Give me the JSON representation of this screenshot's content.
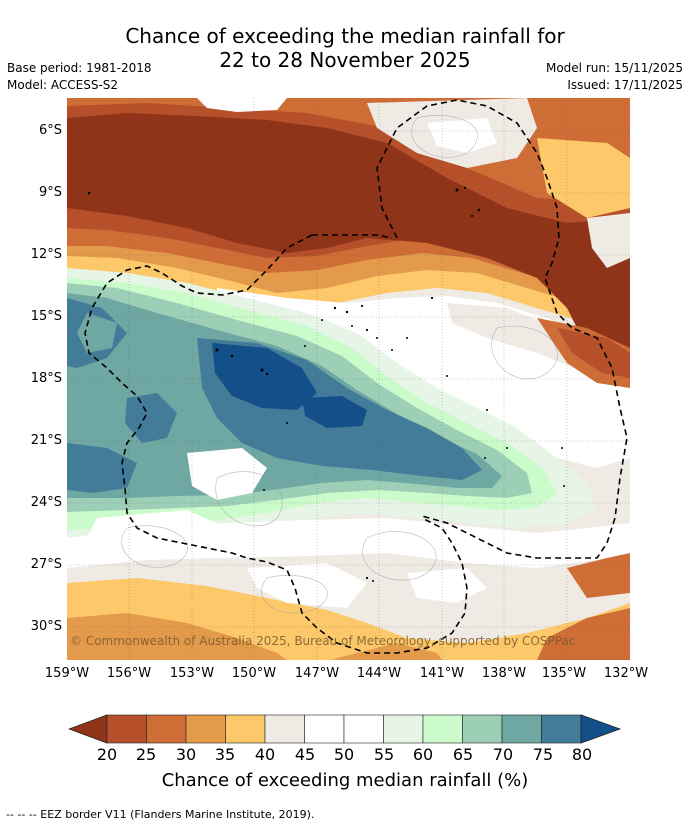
{
  "title_line1": "Chance of exceeding the median rainfall for",
  "title_line2": "22 to 28 November 2025",
  "base_period": "Base period: 1981-2018",
  "model": "Model: ACCESS-S2",
  "model_run": "Model run: 15/11/2025",
  "issued": "Issued: 17/11/2025",
  "copyright": "© Commonwealth of Australia 2025, Bureau of Meteorology, supported by COSPPac",
  "lat_labels": [
    "6°S",
    "9°S",
    "12°S",
    "15°S",
    "18°S",
    "21°S",
    "24°S",
    "27°S",
    "30°S"
  ],
  "lon_labels": [
    "159°W",
    "156°W",
    "153°W",
    "150°W",
    "147°W",
    "144°W",
    "141°W",
    "138°W",
    "135°W",
    "132°W"
  ],
  "colorbar": {
    "ticks": [
      "20",
      "25",
      "30",
      "35",
      "40",
      "45",
      "50",
      "55",
      "60",
      "65",
      "70",
      "75",
      "80"
    ],
    "colors": [
      "#8f3418",
      "#b5502b",
      "#cf6d37",
      "#e39a4b",
      "#fcc86a",
      "#efebe4",
      "#ffffff",
      "#ffffff",
      "#e7f5e7",
      "#cbfbcb",
      "#9ccfb6",
      "#6fa7a3",
      "#437c98",
      "#134f89"
    ],
    "title": "Chance of exceeding median rainfall (%)"
  },
  "footnote": "--  --  -- EEZ border V11 (Flanders Marine Institute, 2019)."
}
